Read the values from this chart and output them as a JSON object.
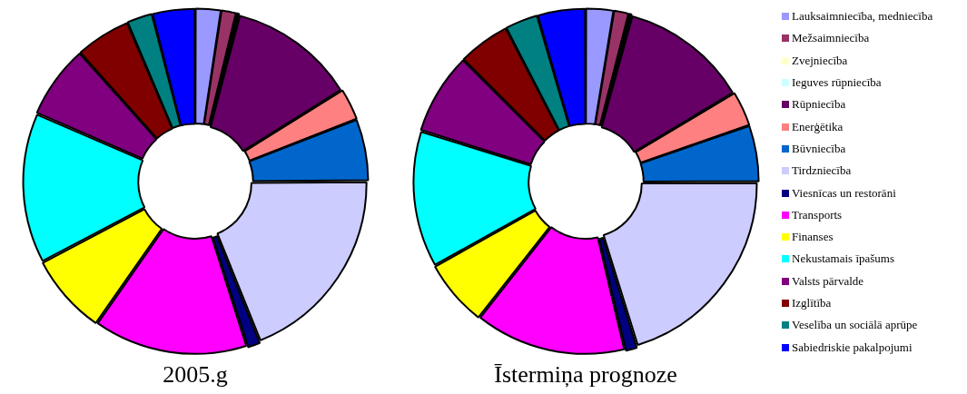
{
  "chart_data": {
    "type": "donut",
    "legend": "right",
    "categories": [
      "Lauksaimniecība, medniecība",
      "Mežsaimniecība",
      "Zvejniecība",
      "Ieguves rūpniecība",
      "Rūpniecība",
      "Enerģētika",
      "Būvniecība",
      "Tirdzniecība",
      "Viesnīcas un restorāni",
      "Transports",
      "Finanses",
      "Nekustamais īpašums",
      "Valsts pārvalde",
      "Izglītība",
      "Veselība un sociālā aprūpe",
      "Sabiedriskie pakalpojumi"
    ],
    "colors": [
      "#9999ff",
      "#993366",
      "#ffffcc",
      "#ccffff",
      "#660066",
      "#ff8080",
      "#0066cc",
      "#ccccff",
      "#000080",
      "#ff00ff",
      "#ffff00",
      "#00ffff",
      "#800080",
      "#800000",
      "#008080",
      "#0000ff"
    ],
    "series": [
      {
        "name": "2005.g",
        "values": [
          2.4,
          1.4,
          0.2,
          0.1,
          12,
          3,
          5.8,
          19,
          1.2,
          14.6,
          7.6,
          14.2,
          6.9,
          5.2,
          2.4,
          4.0
        ]
      },
      {
        "name": "Īstermiņa prognoze",
        "values": [
          2.6,
          1.4,
          0.2,
          0.1,
          12.1,
          3.3,
          5.3,
          20.2,
          1.1,
          14.3,
          6.3,
          12.9,
          7.7,
          4.9,
          3.1,
          4.5
        ]
      }
    ]
  }
}
